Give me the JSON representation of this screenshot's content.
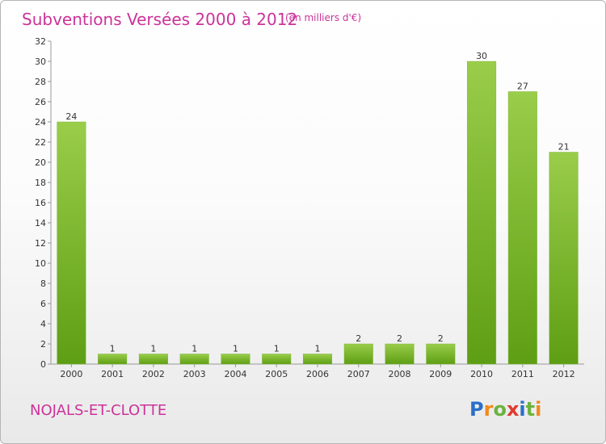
{
  "chart_data": {
    "type": "bar",
    "title": "Subventions Versées 2000 à 2012",
    "subtitle": "(en milliers d'€)",
    "xlabel": "",
    "ylabel": "",
    "categories": [
      "2000",
      "2001",
      "2002",
      "2003",
      "2004",
      "2005",
      "2006",
      "2007",
      "2008",
      "2009",
      "2010",
      "2011",
      "2012"
    ],
    "values": [
      24,
      1,
      1,
      1,
      1,
      1,
      1,
      2,
      2,
      2,
      30,
      27,
      21
    ],
    "data_labels": [
      "24",
      "1",
      "1",
      "1",
      "1",
      "1",
      "1",
      "2",
      "2",
      "2",
      "30",
      "27",
      "21"
    ],
    "ylim": [
      0,
      32
    ],
    "yticks": [
      0,
      2,
      4,
      6,
      8,
      10,
      12,
      14,
      16,
      18,
      20,
      22,
      24,
      26,
      28,
      30,
      32
    ],
    "ytick_labels": [
      "0",
      "2",
      "4",
      "6",
      "8",
      "10",
      "12",
      "14",
      "16",
      "18",
      "20",
      "22",
      "24",
      "26",
      "28",
      "30",
      "32"
    ],
    "grid": false,
    "bar_color_top": "#9acd4a",
    "bar_color_bottom": "#5e9e14"
  },
  "footer": {
    "commune": "NOJALS-ET-CLOTTE",
    "logo_letters": [
      {
        "ch": "P",
        "color": "#2a6fc9"
      },
      {
        "ch": "r",
        "color": "#f08a1c"
      },
      {
        "ch": "o",
        "color": "#6db33f"
      },
      {
        "ch": "x",
        "color": "#e23a2e"
      },
      {
        "ch": "i",
        "color": "#2a6fc9"
      },
      {
        "ch": "t",
        "color": "#6db33f"
      },
      {
        "ch": "i",
        "color": "#f08a1c"
      }
    ]
  }
}
